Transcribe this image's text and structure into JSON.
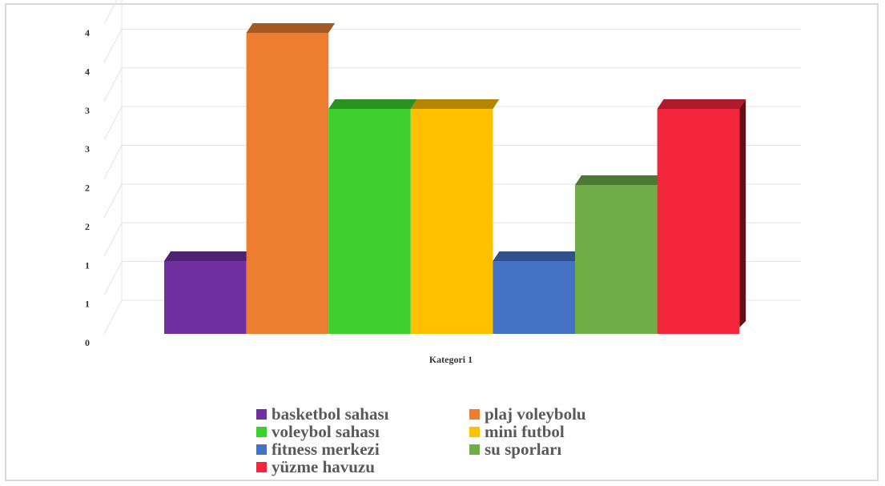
{
  "chart_data": {
    "type": "bar",
    "title": "",
    "xlabel": "",
    "ylabel": "",
    "categories": [
      "Kategori 1"
    ],
    "y_tick_labels": [
      "0",
      "1",
      "1",
      "2",
      "2",
      "3",
      "3",
      "4",
      "4"
    ],
    "ylim": [
      0,
      4
    ],
    "grid": true,
    "legend_position": "bottom",
    "series": [
      {
        "name": "basketbol sahası",
        "values": [
          1
        ],
        "color": "#7030a0"
      },
      {
        "name": "plaj voleybolu",
        "values": [
          4
        ],
        "color": "#ed7d31"
      },
      {
        "name": "voleybol sahası",
        "values": [
          3
        ],
        "color": "#3dd02e"
      },
      {
        "name": "mini futbol",
        "values": [
          3
        ],
        "color": "#ffc000"
      },
      {
        "name": "fitness merkezi",
        "values": [
          1
        ],
        "color": "#4472c4"
      },
      {
        "name": "su sporları",
        "values": [
          2
        ],
        "color": "#70ad47"
      },
      {
        "name": "yüzme havuzu",
        "values": [
          3
        ],
        "color": "#f4263b"
      }
    ]
  }
}
